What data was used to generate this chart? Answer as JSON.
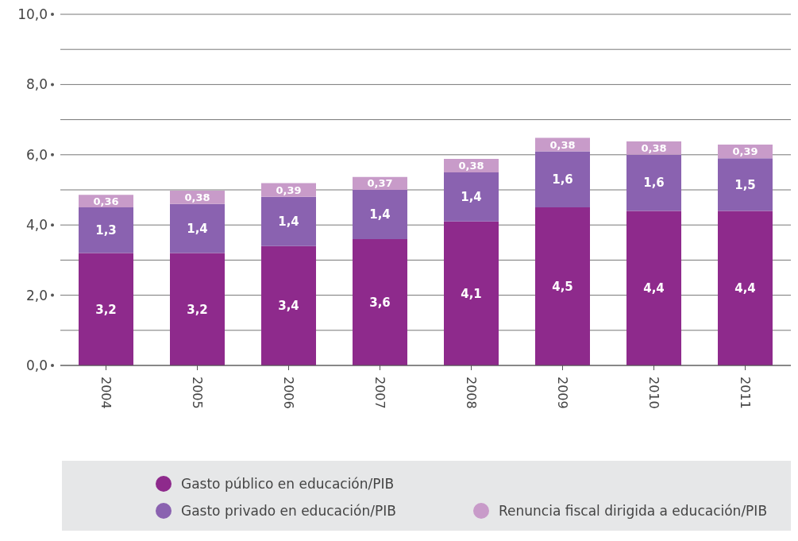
{
  "chart_data": {
    "type": "bar",
    "stacked": true,
    "categories": [
      "2004",
      "2005",
      "2006",
      "2007",
      "2008",
      "2009",
      "2010",
      "2011"
    ],
    "series": [
      {
        "name": "Gasto público en educación/PIB",
        "color": "#8e2a8c",
        "values": [
          3.2,
          3.2,
          3.4,
          3.6,
          4.1,
          4.5,
          4.4,
          4.4
        ],
        "value_labels": [
          "3,2",
          "3,2",
          "3,4",
          "3,6",
          "4,1",
          "4,5",
          "4,4",
          "4,4"
        ]
      },
      {
        "name": "Gasto privado en educación/PIB",
        "color": "#8a62b0",
        "values": [
          1.3,
          1.4,
          1.4,
          1.4,
          1.4,
          1.6,
          1.6,
          1.5
        ],
        "value_labels": [
          "1,3",
          "1,4",
          "1,4",
          "1,4",
          "1,4",
          "1,6",
          "1,6",
          "1,5"
        ]
      },
      {
        "name": "Renuncia fiscal dirigida a educación/PIB",
        "color": "#c89bc9",
        "values": [
          0.36,
          0.38,
          0.39,
          0.37,
          0.38,
          0.38,
          0.38,
          0.39
        ],
        "value_labels": [
          "0,36",
          "0,38",
          "0,39",
          "0,37",
          "0,38",
          "0,38",
          "0,38",
          "0,39"
        ]
      }
    ],
    "ylim": [
      0,
      10
    ],
    "yticks": [
      {
        "value": 0,
        "label": "0,0"
      },
      {
        "value": 1,
        "label": null
      },
      {
        "value": 2,
        "label": "2,0"
      },
      {
        "value": 3,
        "label": null
      },
      {
        "value": 4,
        "label": "4,0"
      },
      {
        "value": 5,
        "label": null
      },
      {
        "value": 6,
        "label": "6,0"
      },
      {
        "value": 7,
        "label": null
      },
      {
        "value": 8,
        "label": "8,0"
      },
      {
        "value": 9,
        "label": null
      },
      {
        "value": 10,
        "label": "10,0"
      }
    ],
    "grid": "y",
    "legend": "bottom"
  }
}
